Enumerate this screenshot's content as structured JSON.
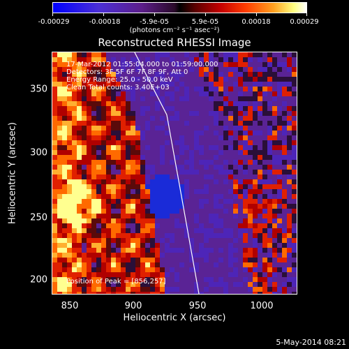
{
  "colorbar": {
    "ticks": [
      "-0.00029",
      "-0.00018",
      "-5.9e-05",
      "5.9e-05",
      "0.00018",
      "0.00029"
    ],
    "unit": "(photons cm⁻² s⁻¹ asec⁻²)",
    "colors": [
      "#0000ff",
      "#5c1e8a",
      "#000000",
      "#c40000",
      "#ffa020",
      "#ffffff"
    ]
  },
  "chart_data": {
    "type": "heatmap",
    "title": "Reconstructed RHESSI Image",
    "xlabel": "Heliocentric X (arcsec)",
    "ylabel": "Heliocentric Y (arcsec)",
    "xlim": [
      836,
      1026
    ],
    "ylim": [
      187,
      373
    ],
    "xticks": [
      850,
      900,
      950,
      1000
    ],
    "yticks": [
      200,
      250,
      300,
      350
    ],
    "annotations": [
      "17-Mar-2012 01:55:04.000 to 01:59:00.000",
      "Detectors: 3F 5F 6F 7F 8F 9F, Att 0",
      "Energy Range: 25.0 - 50.0 keV",
      "Clean     Total counts: 3.40E+03"
    ],
    "peak_label": "Position of Peak = [856,257]",
    "peak": [
      856,
      257
    ],
    "limb_curve": [
      [
        900,
        373
      ],
      [
        925,
        325
      ],
      [
        935,
        270
      ],
      [
        950,
        187
      ]
    ]
  },
  "timestamp": "5-May-2014 08:21"
}
